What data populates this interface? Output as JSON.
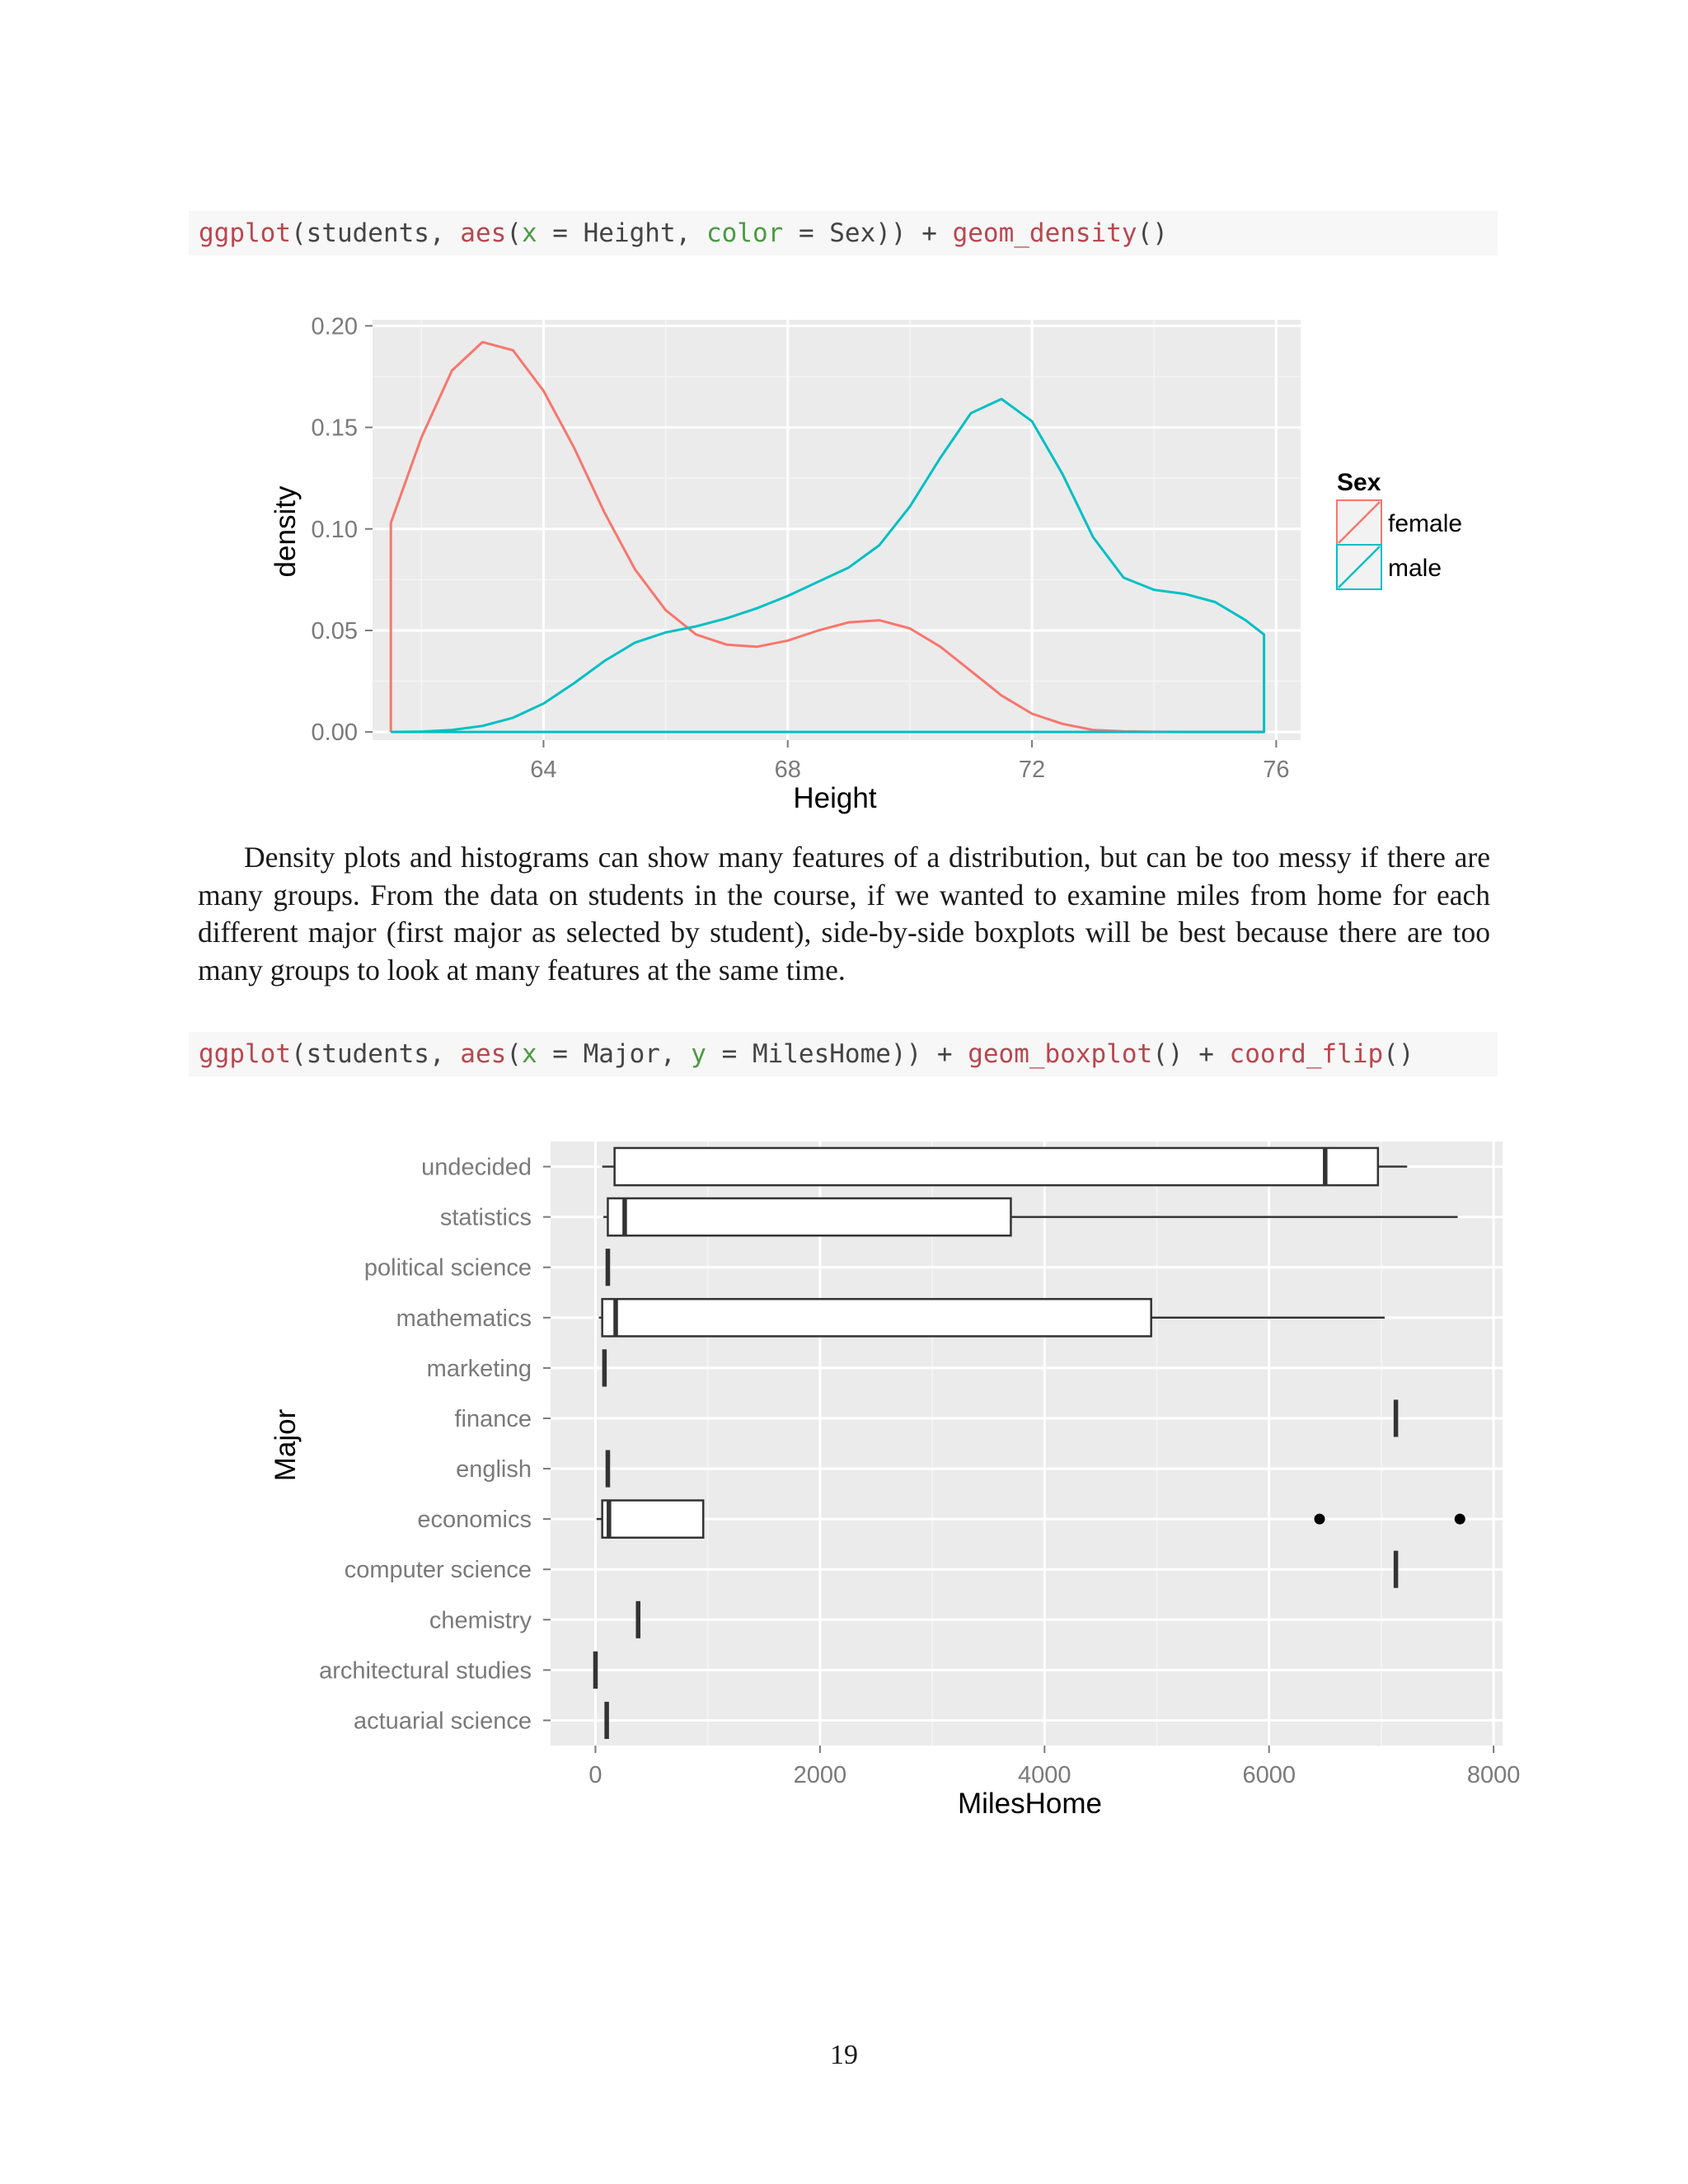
{
  "code1": {
    "tokens": [
      {
        "text": "ggplot",
        "kind": "fn"
      },
      {
        "text": "(students, ",
        "kind": "plain"
      },
      {
        "text": "aes",
        "kind": "fn"
      },
      {
        "text": "(",
        "kind": "plain"
      },
      {
        "text": "x",
        "kind": "arg"
      },
      {
        "text": " = Height, ",
        "kind": "plain"
      },
      {
        "text": "color",
        "kind": "arg"
      },
      {
        "text": " = Sex)) + ",
        "kind": "plain"
      },
      {
        "text": "geom_density",
        "kind": "fn"
      },
      {
        "text": "()",
        "kind": "plain"
      }
    ]
  },
  "code2": {
    "tokens": [
      {
        "text": "ggplot",
        "kind": "fn"
      },
      {
        "text": "(students, ",
        "kind": "plain"
      },
      {
        "text": "aes",
        "kind": "fn"
      },
      {
        "text": "(",
        "kind": "plain"
      },
      {
        "text": "x",
        "kind": "arg"
      },
      {
        "text": " = Major, ",
        "kind": "plain"
      },
      {
        "text": "y",
        "kind": "arg"
      },
      {
        "text": " = MilesHome)) + ",
        "kind": "plain"
      },
      {
        "text": "geom_boxplot",
        "kind": "fn"
      },
      {
        "text": "() + ",
        "kind": "plain"
      },
      {
        "text": "coord_flip",
        "kind": "fn"
      },
      {
        "text": "()",
        "kind": "plain"
      }
    ]
  },
  "paragraph": "Density plots and histograms can show many features of a distribution, but can be too messy if there are many groups. From the data on students in the course, if we wanted to examine miles from home for each different major (first major as selected by student), side-by-side boxplots will be best because there are too many groups to look at many features at the same time.",
  "page_number": "19",
  "colors": {
    "female": "#F8766D",
    "male": "#00BFC4",
    "panel_bg": "#EBEBEB",
    "grid": "#FFFFFF",
    "code_fn": "#b8474f",
    "code_arg": "#4a9a40"
  },
  "chart_data": [
    {
      "type": "line",
      "subtype": "density",
      "xlabel": "Height",
      "ylabel": "density",
      "xlim": [
        61.2,
        76.4
      ],
      "ylim": [
        -0.004,
        0.203
      ],
      "x_ticks": [
        64,
        68,
        72,
        76
      ],
      "x_tick_labels": [
        "64",
        "68",
        "72",
        "76"
      ],
      "y_ticks": [
        0,
        0.05,
        0.1,
        0.15,
        0.2
      ],
      "y_tick_labels": [
        "0.00",
        "0.05",
        "0.10",
        "0.15",
        "0.20"
      ],
      "grid": true,
      "legend": {
        "title": "Sex",
        "position": "right",
        "entries": [
          "female",
          "male"
        ]
      },
      "series": [
        {
          "name": "female",
          "x": [
            61.5,
            61.5,
            62.0,
            62.5,
            63.0,
            63.5,
            64.0,
            64.5,
            65.0,
            65.5,
            66.0,
            66.5,
            67.0,
            67.5,
            68.0,
            68.5,
            69.0,
            69.5,
            70.0,
            70.5,
            71.0,
            71.5,
            72.0,
            72.5,
            73.0,
            73.5,
            74.0,
            74.5,
            75.0,
            75.8,
            75.8
          ],
          "y": [
            0,
            0.103,
            0.145,
            0.178,
            0.192,
            0.188,
            0.168,
            0.14,
            0.108,
            0.08,
            0.06,
            0.048,
            0.043,
            0.042,
            0.045,
            0.05,
            0.054,
            0.055,
            0.051,
            0.042,
            0.03,
            0.018,
            0.009,
            0.004,
            0.001,
            0.0003,
            0.0001,
            0,
            0,
            0,
            0
          ]
        },
        {
          "name": "male",
          "x": [
            61.5,
            62.0,
            62.5,
            63.0,
            63.5,
            64.0,
            64.5,
            65.0,
            65.5,
            66.0,
            66.5,
            67.0,
            67.5,
            68.0,
            68.5,
            69.0,
            69.5,
            70.0,
            70.5,
            71.0,
            71.5,
            72.0,
            72.5,
            73.0,
            73.5,
            74.0,
            74.5,
            75.0,
            75.5,
            75.8,
            75.8,
            61.5
          ],
          "y": [
            0,
            0.0002,
            0.001,
            0.003,
            0.007,
            0.014,
            0.024,
            0.035,
            0.044,
            0.049,
            0.052,
            0.056,
            0.061,
            0.067,
            0.074,
            0.081,
            0.092,
            0.111,
            0.135,
            0.157,
            0.164,
            0.153,
            0.127,
            0.096,
            0.076,
            0.07,
            0.068,
            0.064,
            0.055,
            0.048,
            0,
            0
          ]
        }
      ]
    },
    {
      "type": "boxplot",
      "orientation": "horizontal",
      "xlabel": "MilesHome",
      "ylabel": "Major",
      "xlim": [
        -400,
        8080
      ],
      "x_ticks": [
        0,
        2000,
        4000,
        6000,
        8000
      ],
      "x_tick_labels": [
        "0",
        "2000",
        "4000",
        "6000",
        "8000"
      ],
      "grid": true,
      "categories": [
        "undecided",
        "statistics",
        "political science",
        "mathematics",
        "marketing",
        "finance",
        "english",
        "economics",
        "computer science",
        "chemistry",
        "architectural studies",
        "actuarial science"
      ],
      "boxes": [
        {
          "category": "undecided",
          "min": 60,
          "q1": 170,
          "median": 6500,
          "q3": 6970,
          "max": 7230,
          "outliers": []
        },
        {
          "category": "statistics",
          "min": 70,
          "q1": 110,
          "median": 260,
          "q3": 3700,
          "max": 7680,
          "outliers": []
        },
        {
          "category": "political science",
          "min": 110,
          "q1": 110,
          "median": 110,
          "q3": 110,
          "max": 110,
          "outliers": []
        },
        {
          "category": "mathematics",
          "min": 30,
          "q1": 60,
          "median": 180,
          "q3": 4950,
          "max": 7030,
          "outliers": []
        },
        {
          "category": "marketing",
          "min": 80,
          "q1": 80,
          "median": 80,
          "q3": 80,
          "max": 80,
          "outliers": []
        },
        {
          "category": "finance",
          "min": 7130,
          "q1": 7130,
          "median": 7130,
          "q3": 7130,
          "max": 7130,
          "outliers": []
        },
        {
          "category": "english",
          "min": 110,
          "q1": 110,
          "median": 110,
          "q3": 110,
          "max": 110,
          "outliers": []
        },
        {
          "category": "economics",
          "min": 10,
          "q1": 60,
          "median": 120,
          "q3": 960,
          "max": 960,
          "outliers": [
            6450,
            7700
          ]
        },
        {
          "category": "computer science",
          "min": 7130,
          "q1": 7130,
          "median": 7130,
          "q3": 7130,
          "max": 7130,
          "outliers": []
        },
        {
          "category": "chemistry",
          "min": 380,
          "q1": 380,
          "median": 380,
          "q3": 380,
          "max": 380,
          "outliers": []
        },
        {
          "category": "architectural studies",
          "min": 0,
          "q1": 0,
          "median": 0,
          "q3": 0,
          "max": 0,
          "outliers": []
        },
        {
          "category": "actuarial science",
          "min": 100,
          "q1": 100,
          "median": 100,
          "q3": 100,
          "max": 100,
          "outliers": []
        }
      ]
    }
  ]
}
